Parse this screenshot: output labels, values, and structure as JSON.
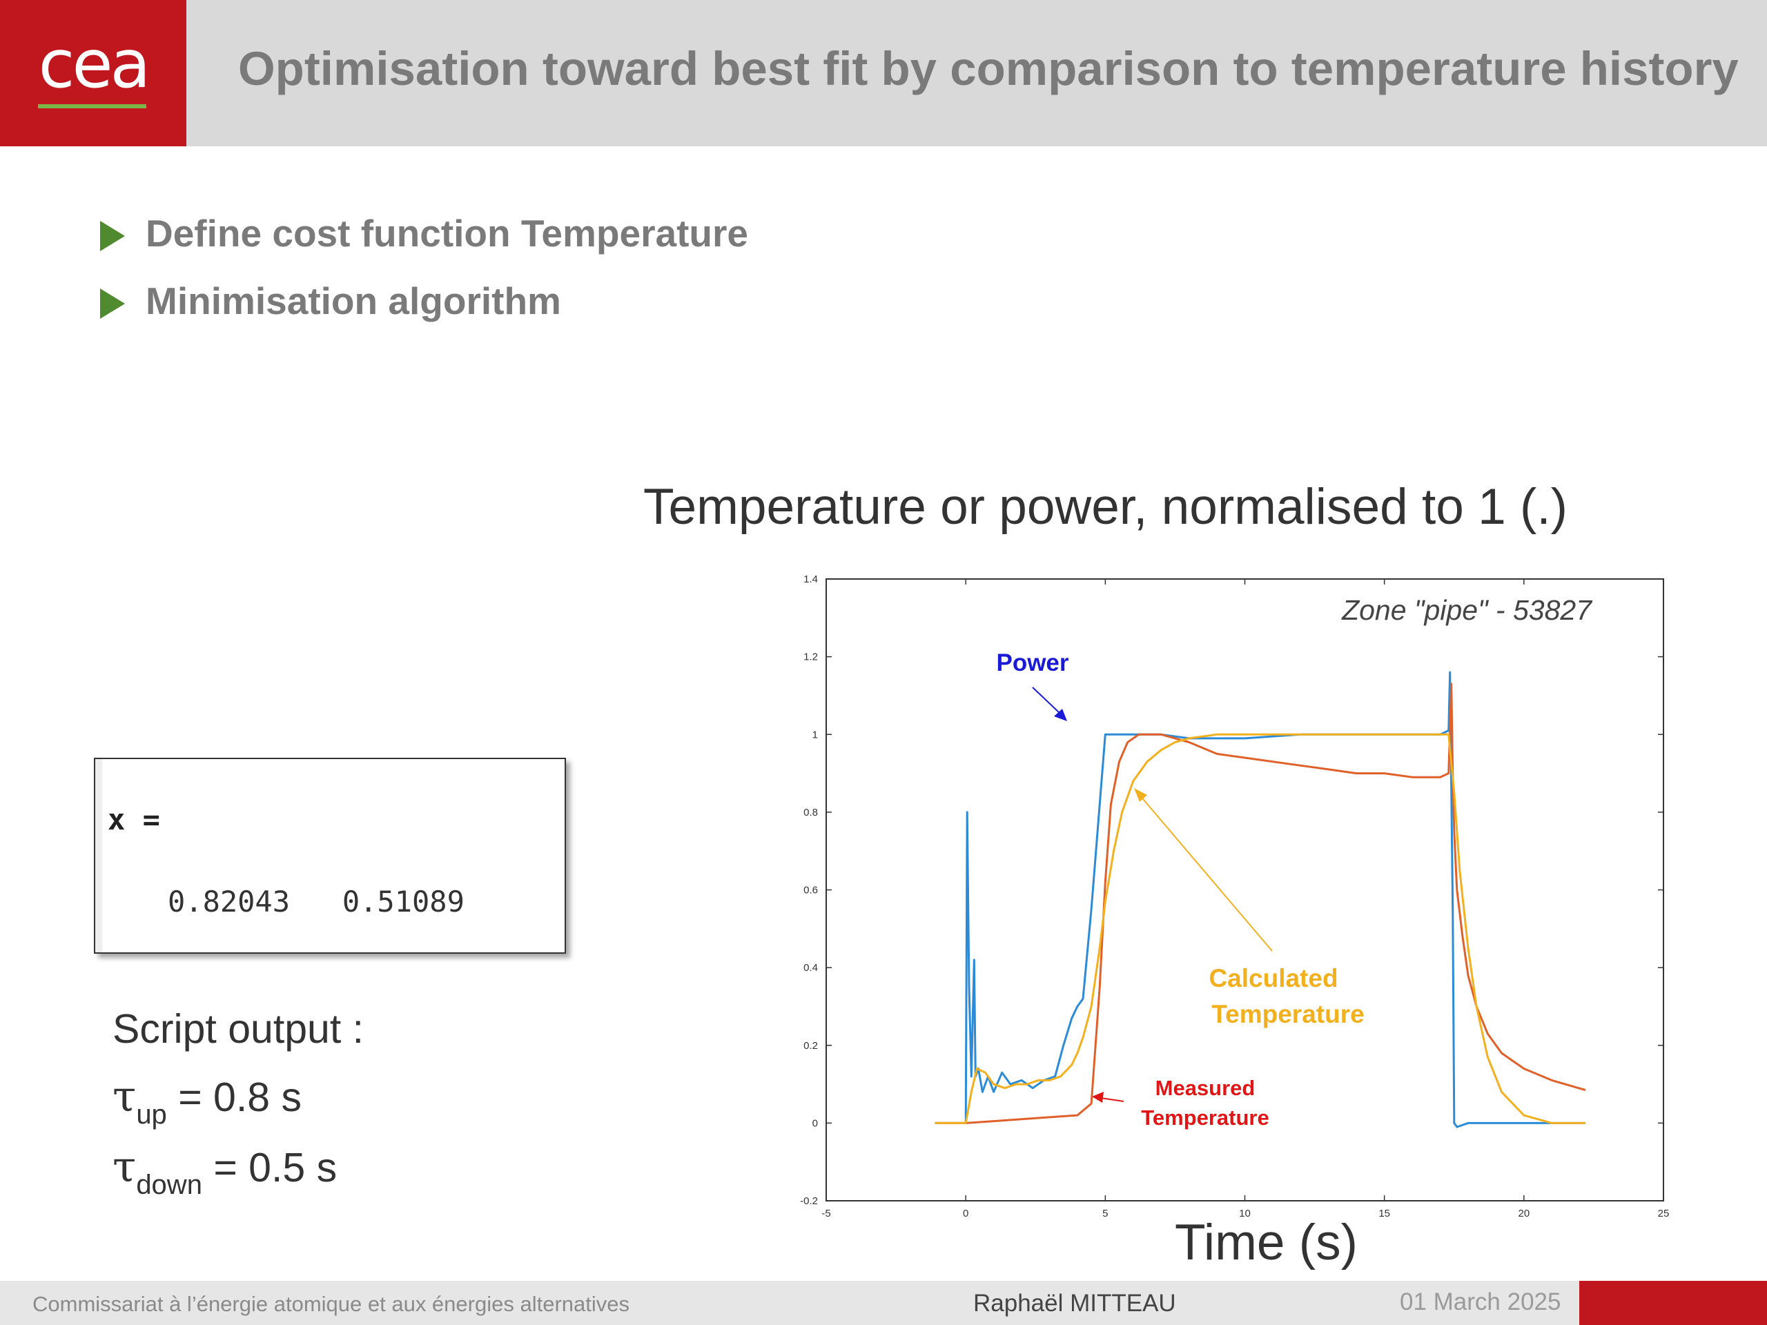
{
  "header": {
    "logo_text": "cea",
    "title": "Optimisation toward best fit by comparison to temperature history"
  },
  "bullets": [
    "Define cost function Temperature",
    "Minimisation algorithm"
  ],
  "console": {
    "var_line": "x =",
    "values_line": "0.82043   0.51089"
  },
  "output": {
    "heading": "Script output :",
    "tau_symbol": "τ",
    "up_sub": "up",
    "up_value": " = 0.8 s",
    "down_sub": "down",
    "down_value": " = 0.5 s"
  },
  "footer": {
    "organisation": "Commissariat à l’énergie atomique et aux énergies alternatives",
    "author": "Raphaël MITTEAU",
    "date": "01 March 2025"
  },
  "colors": {
    "brand_red": "#c0161d",
    "accent_green": "#7ab648",
    "bullet_green": "#4f8a2e",
    "power": "#2c8bd6",
    "measured": "#e0602a",
    "calculated": "#f2b01e"
  },
  "chart_data": {
    "type": "line",
    "title": "Temperature or power, normalised to 1 (.)",
    "xlabel": "Time (s)",
    "ylabel": "",
    "xlim": [
      -5,
      25
    ],
    "ylim": [
      -0.2,
      1.4
    ],
    "xticks": [
      -5,
      0,
      5,
      10,
      15,
      20,
      25
    ],
    "yticks": [
      -0.2,
      0,
      0.2,
      0.4,
      0.6,
      0.8,
      1,
      1.2,
      1.4
    ],
    "zone_label": "Zone \"pipe\" - 53827",
    "annotations": {
      "power": "Power",
      "calculated_line1": "Calculated",
      "calculated_line2": "Temperature",
      "measured_line1": "Measured",
      "measured_line2": "Temperature"
    },
    "series": [
      {
        "name": "Power",
        "color": "#2c8bd6",
        "x": [
          -1.1,
          0,
          0.05,
          0.12,
          0.2,
          0.3,
          0.35,
          0.45,
          0.6,
          0.8,
          1.0,
          1.3,
          1.6,
          2.0,
          2.4,
          2.8,
          3.2,
          3.5,
          3.8,
          4.0,
          4.2,
          4.5,
          5.0,
          6.0,
          7.0,
          8.0,
          10.0,
          12.0,
          15.0,
          17.0,
          17.3,
          17.35,
          17.45,
          17.5,
          17.6,
          18.0,
          22.2
        ],
        "y": [
          0.0,
          0.0,
          0.8,
          0.35,
          0.12,
          0.42,
          0.12,
          0.14,
          0.08,
          0.12,
          0.08,
          0.13,
          0.1,
          0.11,
          0.09,
          0.11,
          0.12,
          0.2,
          0.27,
          0.3,
          0.32,
          0.55,
          1.0,
          1.0,
          1.0,
          0.99,
          0.99,
          1.0,
          1.0,
          1.0,
          1.01,
          1.16,
          0.55,
          0.0,
          -0.01,
          0.0,
          0.0
        ]
      },
      {
        "name": "Measured Temperature",
        "color": "#e0602a",
        "x": [
          -1.1,
          0,
          1.0,
          2.0,
          3.0,
          4.0,
          4.5,
          4.8,
          5.0,
          5.2,
          5.5,
          5.8,
          6.2,
          7.0,
          8.0,
          9.0,
          10.0,
          11.0,
          12.0,
          13.0,
          14.0,
          15.0,
          16.0,
          17.0,
          17.3,
          17.4,
          17.45,
          17.5,
          17.6,
          17.8,
          18.0,
          18.3,
          18.7,
          19.2,
          20.0,
          21.0,
          22.2
        ],
        "y": [
          0.0,
          0.0,
          0.005,
          0.01,
          0.015,
          0.02,
          0.05,
          0.35,
          0.62,
          0.82,
          0.93,
          0.98,
          1.0,
          1.0,
          0.98,
          0.95,
          0.94,
          0.93,
          0.92,
          0.91,
          0.9,
          0.9,
          0.89,
          0.89,
          0.9,
          1.13,
          0.9,
          0.75,
          0.6,
          0.48,
          0.38,
          0.3,
          0.23,
          0.18,
          0.14,
          0.11,
          0.085
        ]
      },
      {
        "name": "Calculated Temperature",
        "color": "#f2b01e",
        "x": [
          -1.1,
          0,
          0.2,
          0.4,
          0.7,
          1.0,
          1.4,
          1.8,
          2.2,
          2.6,
          3.0,
          3.4,
          3.8,
          4.0,
          4.2,
          4.5,
          4.8,
          5.0,
          5.3,
          5.6,
          6.0,
          6.5,
          7.0,
          7.5,
          8.0,
          9.0,
          10.0,
          12.0,
          15.0,
          17.0,
          17.3,
          17.5,
          17.7,
          18.0,
          18.3,
          18.7,
          19.2,
          20.0,
          21.0,
          22.2
        ],
        "y": [
          0.0,
          0.0,
          0.08,
          0.14,
          0.13,
          0.1,
          0.09,
          0.1,
          0.1,
          0.11,
          0.11,
          0.12,
          0.15,
          0.18,
          0.22,
          0.3,
          0.45,
          0.57,
          0.7,
          0.8,
          0.88,
          0.93,
          0.96,
          0.98,
          0.99,
          1.0,
          1.0,
          1.0,
          1.0,
          1.0,
          1.0,
          0.85,
          0.65,
          0.45,
          0.3,
          0.17,
          0.08,
          0.02,
          0.0,
          0.0
        ]
      }
    ]
  }
}
